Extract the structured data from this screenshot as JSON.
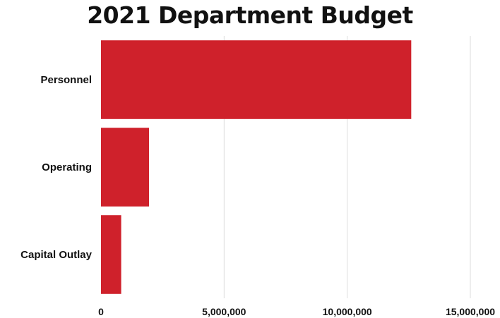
{
  "chart_data": {
    "type": "bar",
    "orientation": "horizontal",
    "title": "2021 Department Budget",
    "categories": [
      "Personnel",
      "Operating",
      "Capital Outlay"
    ],
    "values": [
      12600000,
      1950000,
      820000
    ],
    "xlabel": "",
    "ylabel": "",
    "xlim": [
      0,
      15000000
    ],
    "x_ticks": [
      0,
      5000000,
      10000000,
      15000000
    ],
    "x_tick_labels": [
      "0",
      "5,000,000",
      "10,000,000",
      "15,000,000"
    ],
    "grid": "vertical",
    "legend": "none",
    "colors": {
      "bar": "#cf212b",
      "grid": "#dddddd"
    }
  }
}
